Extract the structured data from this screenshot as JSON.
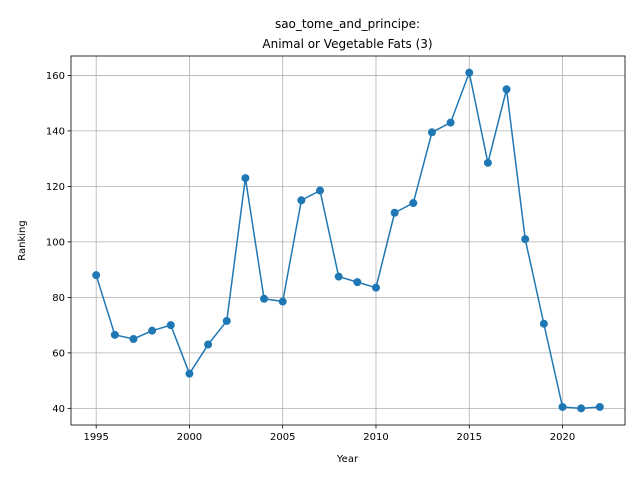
{
  "chart_data": {
    "type": "line",
    "title_line1": "sao_tome_and_principe:",
    "title_line2": "Animal or Vegetable Fats (3)",
    "xlabel": "Year",
    "ylabel": "Ranking",
    "xlim": [
      1993.65,
      2023.35
    ],
    "ylim": [
      34.0,
      167.0
    ],
    "xticks": [
      1995,
      2000,
      2005,
      2010,
      2015,
      2020
    ],
    "yticks": [
      40,
      60,
      80,
      100,
      120,
      140,
      160
    ],
    "grid": true,
    "color": "#1f77b4",
    "series": [
      {
        "x": [
          1995,
          1996,
          1997,
          1998,
          1999,
          2000,
          2001,
          2002,
          2003,
          2004,
          2005,
          2006,
          2007,
          2008,
          2009,
          2010,
          2011,
          2012,
          2013,
          2014,
          2015,
          2016,
          2017,
          2018,
          2019,
          2020,
          2021,
          2022
        ],
        "y": [
          88,
          66.5,
          65,
          68,
          70,
          52.5,
          63,
          71.5,
          123,
          79.5,
          78.5,
          115,
          118.5,
          87.5,
          85.5,
          83.5,
          110.5,
          114,
          139.5,
          143,
          161,
          128.5,
          155,
          101,
          70.5,
          40.5,
          40,
          40.5
        ]
      }
    ]
  }
}
